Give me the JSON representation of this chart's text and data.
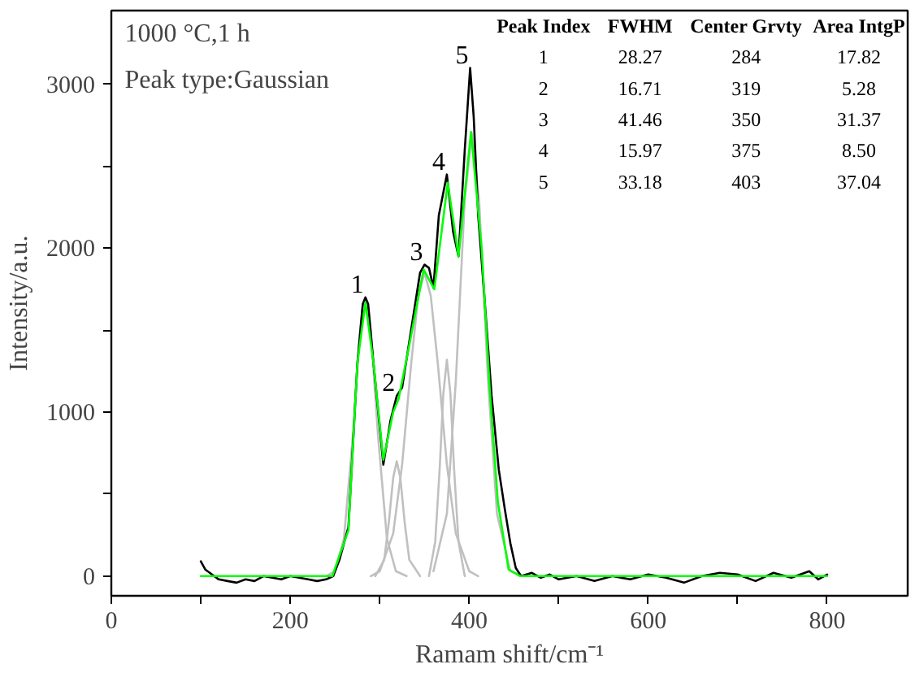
{
  "chart_data": {
    "type": "line",
    "xlabel": "Ramam shift/cm⁻¹",
    "ylabel": "Intensity/a.u.",
    "xlim": [
      0,
      890
    ],
    "ylim": [
      -120,
      3450
    ],
    "xticks": [
      0,
      {
        "value": 100,
        "label": null
      },
      200,
      {
        "value": 300,
        "label": null
      },
      400,
      {
        "value": 500,
        "label": null
      },
      600,
      {
        "value": 700,
        "label": null
      },
      800
    ],
    "yticks": [
      0,
      {
        "value": 500,
        "label": null
      },
      1000,
      {
        "value": 1500,
        "label": null
      },
      2000,
      {
        "value": 2500,
        "label": null
      },
      3000
    ],
    "grid": false,
    "marker": "none",
    "line_style": "solid",
    "series": [
      {
        "color": "#c0c0c0",
        "x": [
          240,
          250,
          260,
          270,
          278,
          281,
          284,
          287,
          290,
          298,
          308,
          318,
          330
        ],
        "values": [
          0,
          30,
          230,
          860,
          1500,
          1650,
          1700,
          1650,
          1500,
          860,
          230,
          30,
          0
        ]
      },
      {
        "color": "#c0c0c0",
        "x": [
          295,
          305,
          310,
          315,
          319,
          323,
          328,
          333,
          345
        ],
        "values": [
          0,
          100,
          320,
          600,
          700,
          600,
          320,
          100,
          0
        ]
      },
      {
        "color": "#c0c0c0",
        "x": [
          290,
          300,
          315,
          325,
          335,
          343,
          350,
          357,
          365,
          375,
          385,
          400,
          410
        ],
        "values": [
          0,
          30,
          260,
          680,
          1290,
          1710,
          1850,
          1710,
          1290,
          680,
          260,
          30,
          0
        ]
      },
      {
        "color": "#c0c0c0",
        "x": [
          355,
          362,
          367,
          371,
          375,
          379,
          383,
          388,
          395
        ],
        "values": [
          0,
          210,
          660,
          1110,
          1320,
          1110,
          660,
          210,
          0
        ]
      },
      {
        "color": "#c0c0c0",
        "x": [
          360,
          375,
          385,
          395,
          403,
          411,
          421,
          431,
          446,
          460
        ],
        "values": [
          30,
          380,
          1190,
          2300,
          2700,
          2300,
          1190,
          380,
          30,
          0
        ]
      },
      {
        "color": "#000000",
        "x": [
          100,
          105,
          110,
          120,
          130,
          140,
          150,
          160,
          170,
          180,
          190,
          200,
          210,
          220,
          230,
          240,
          248,
          255,
          265,
          275,
          281,
          284,
          287,
          293,
          304,
          312,
          319,
          325,
          335,
          345,
          350,
          355,
          360,
          366,
          375,
          382,
          388,
          395,
          401,
          405,
          410,
          417,
          425,
          433,
          440,
          446,
          452,
          458,
          470,
          480,
          490,
          500,
          520,
          540,
          560,
          580,
          600,
          620,
          640,
          660,
          680,
          700,
          720,
          740,
          760,
          780,
          790,
          800
        ],
        "values": [
          90,
          40,
          20,
          -20,
          -30,
          -40,
          -20,
          -30,
          0,
          -10,
          -20,
          0,
          -10,
          -20,
          -30,
          -20,
          0,
          100,
          300,
          1300,
          1660,
          1700,
          1660,
          1300,
          680,
          950,
          1100,
          1150,
          1500,
          1850,
          1900,
          1880,
          1760,
          2200,
          2450,
          2100,
          1950,
          2600,
          3100,
          2800,
          2200,
          1700,
          1100,
          650,
          400,
          200,
          50,
          0,
          20,
          -10,
          10,
          -20,
          0,
          -30,
          0,
          -20,
          10,
          -10,
          -40,
          0,
          20,
          10,
          -30,
          20,
          -10,
          30,
          -20,
          10
        ]
      },
      {
        "color": "#00ff00",
        "x": [
          100,
          247,
          265,
          275,
          284,
          293,
          304,
          315,
          321,
          333,
          349,
          361,
          376,
          388,
          402,
          414,
          423,
          432,
          444,
          457,
          800
        ],
        "values": [
          0,
          0,
          280,
          1300,
          1670,
          1300,
          710,
          1000,
          1080,
          1410,
          1870,
          1750,
          2400,
          1950,
          2710,
          1990,
          1130,
          450,
          40,
          0,
          0
        ]
      }
    ],
    "annotations": [
      "1000 °C,1 h",
      "Peak type:Gaussian",
      {
        "text": "1",
        "x": 284,
        "y": 1700
      },
      {
        "text": "2",
        "x": 319,
        "y": 1100
      },
      {
        "text": "3",
        "x": 350,
        "y": 1900
      },
      {
        "text": "4",
        "x": 375,
        "y": 2450
      },
      {
        "text": "5",
        "x": 401,
        "y": 3100
      },
      "Peak Index",
      "FWHM",
      "Center Grvty",
      "Area IntgP",
      "1",
      "28.27",
      "284",
      "17.82",
      "2",
      "16.71",
      "319",
      "5.28",
      "3",
      "41.46",
      "350",
      "31.37",
      "4",
      "15.97",
      "375",
      "8.50",
      "5",
      "33.18",
      "403",
      "37.04"
    ]
  }
}
